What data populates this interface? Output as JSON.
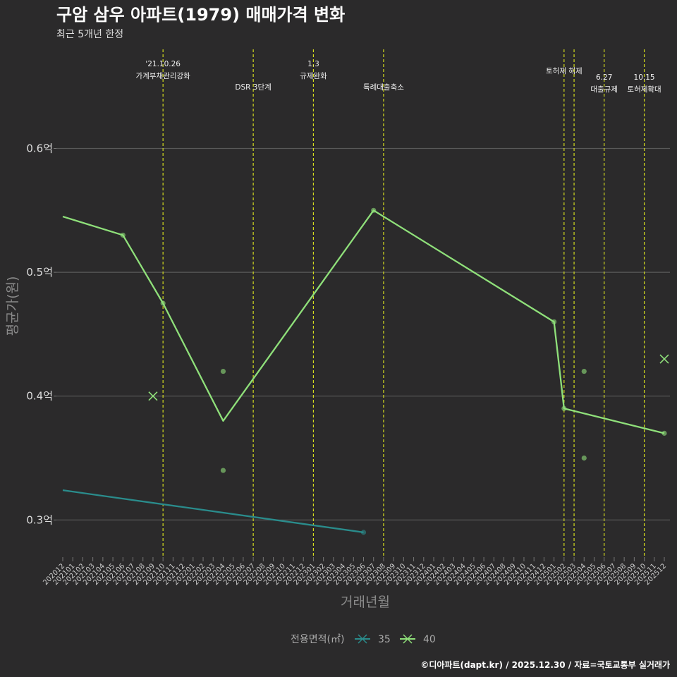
{
  "chart_data": {
    "type": "line",
    "title": "구암 삼우 아파트(1979) 매매가격 변화",
    "subtitle": "최근 5개년 한정",
    "xlabel": "거래년월",
    "ylabel": "평균가(원)",
    "caption": "©디아파트(dapt.kr) / 2025.12.30 / 자료=국토교통부 실거래가",
    "ylim": [
      0.27,
      0.68
    ],
    "y_ticks": [
      0.3,
      0.4,
      0.5,
      0.6
    ],
    "y_tick_labels": [
      "0.3억",
      "0.4억",
      "0.5억",
      "0.6억"
    ],
    "categories": [
      "202012",
      "202101",
      "202102",
      "202103",
      "202104",
      "202105",
      "202106",
      "202107",
      "202108",
      "202109",
      "202110",
      "202111",
      "202112",
      "202201",
      "202202",
      "202203",
      "202204",
      "202205",
      "202206",
      "202207",
      "202208",
      "202209",
      "202210",
      "202211",
      "202212",
      "202301",
      "202302",
      "202303",
      "202304",
      "202305",
      "202306",
      "202307",
      "202308",
      "202309",
      "202310",
      "202311",
      "202312",
      "202401",
      "202402",
      "202403",
      "202404",
      "202405",
      "202406",
      "202407",
      "202408",
      "202409",
      "202410",
      "202411",
      "202412",
      "202501",
      "202502",
      "202503",
      "202504",
      "202505",
      "202506",
      "202507",
      "202508",
      "202509",
      "202510",
      "202511",
      "202512"
    ],
    "legend_title": "전용면적(㎡)",
    "series": [
      {
        "name": "35",
        "color": "#2a8c8c",
        "line": [
          {
            "x": "202012",
            "y": 0.324
          },
          {
            "x": "202306",
            "y": 0.29
          }
        ],
        "points": [
          {
            "x": "202306",
            "y": 0.29
          }
        ],
        "x_marks": []
      },
      {
        "name": "40",
        "color": "#8fe07a",
        "line": [
          {
            "x": "202012",
            "y": 0.545
          },
          {
            "x": "202106",
            "y": 0.53
          },
          {
            "x": "202110",
            "y": 0.475
          },
          {
            "x": "202204",
            "y": 0.38
          },
          {
            "x": "202307",
            "y": 0.55
          },
          {
            "x": "202501",
            "y": 0.46
          },
          {
            "x": "202502",
            "y": 0.39
          },
          {
            "x": "202512",
            "y": 0.37
          }
        ],
        "points": [
          {
            "x": "202106",
            "y": 0.53
          },
          {
            "x": "202110",
            "y": 0.475
          },
          {
            "x": "202204",
            "y": 0.42
          },
          {
            "x": "202204",
            "y": 0.34
          },
          {
            "x": "202307",
            "y": 0.55
          },
          {
            "x": "202501",
            "y": 0.46
          },
          {
            "x": "202502",
            "y": 0.39
          },
          {
            "x": "202504",
            "y": 0.42
          },
          {
            "x": "202504",
            "y": 0.35
          },
          {
            "x": "202512",
            "y": 0.37
          }
        ],
        "x_marks": [
          {
            "x": "202109",
            "y": 0.4
          },
          {
            "x": "202512",
            "y": 0.43
          }
        ]
      }
    ],
    "events": [
      {
        "x": "202110",
        "lines": [
          "'21.10.26",
          "가계부채관리강화"
        ],
        "level": 0
      },
      {
        "x": "202207",
        "lines": [
          "DSR 3단계"
        ],
        "level": 1
      },
      {
        "x": "202301",
        "lines": [
          "1.3",
          "규제완화"
        ],
        "level": 0
      },
      {
        "x": "202308",
        "lines": [
          "특례대출축소"
        ],
        "level": 1
      },
      {
        "x": "202502",
        "lines": [
          "토허제 해제"
        ],
        "level": 0
      },
      {
        "x": "202503",
        "lines": [],
        "level": 0
      },
      {
        "x": "202506",
        "lines": [
          "6.27",
          "대출규제"
        ],
        "level": 1
      },
      {
        "x": "202510",
        "lines": [
          "10.15",
          "토허제확대"
        ],
        "level": 1
      }
    ]
  }
}
